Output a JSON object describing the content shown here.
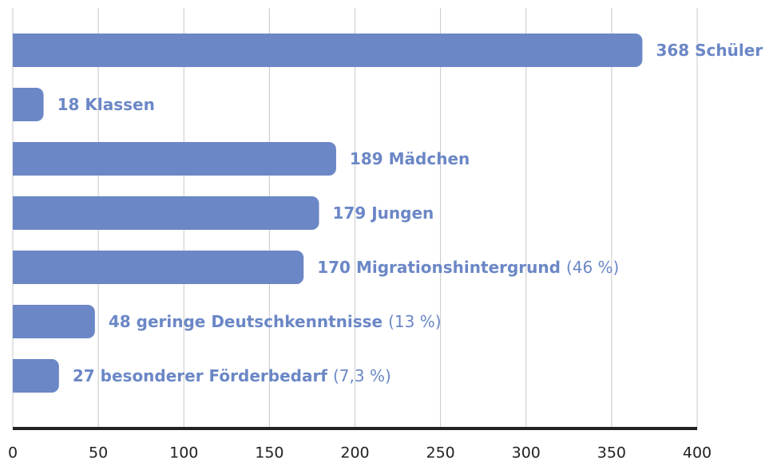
{
  "chart_data": {
    "type": "bar",
    "orientation": "horizontal",
    "categories": [
      "Schüler",
      "Klassen",
      "Mädchen",
      "Jungen",
      "Migrationshintergrund",
      "geringe Deutschkenntnisse",
      "besonderer Förderbedarf"
    ],
    "values": [
      368,
      18,
      189,
      179,
      170,
      48,
      27
    ],
    "notes": [
      null,
      null,
      null,
      null,
      "(46 %)",
      "(13 %)",
      "(7,3 %)"
    ],
    "color": "#6b87c6",
    "xlim": [
      0,
      400
    ],
    "xticks": [
      0,
      50,
      100,
      150,
      200,
      250,
      300,
      350,
      400
    ],
    "grid": true
  }
}
